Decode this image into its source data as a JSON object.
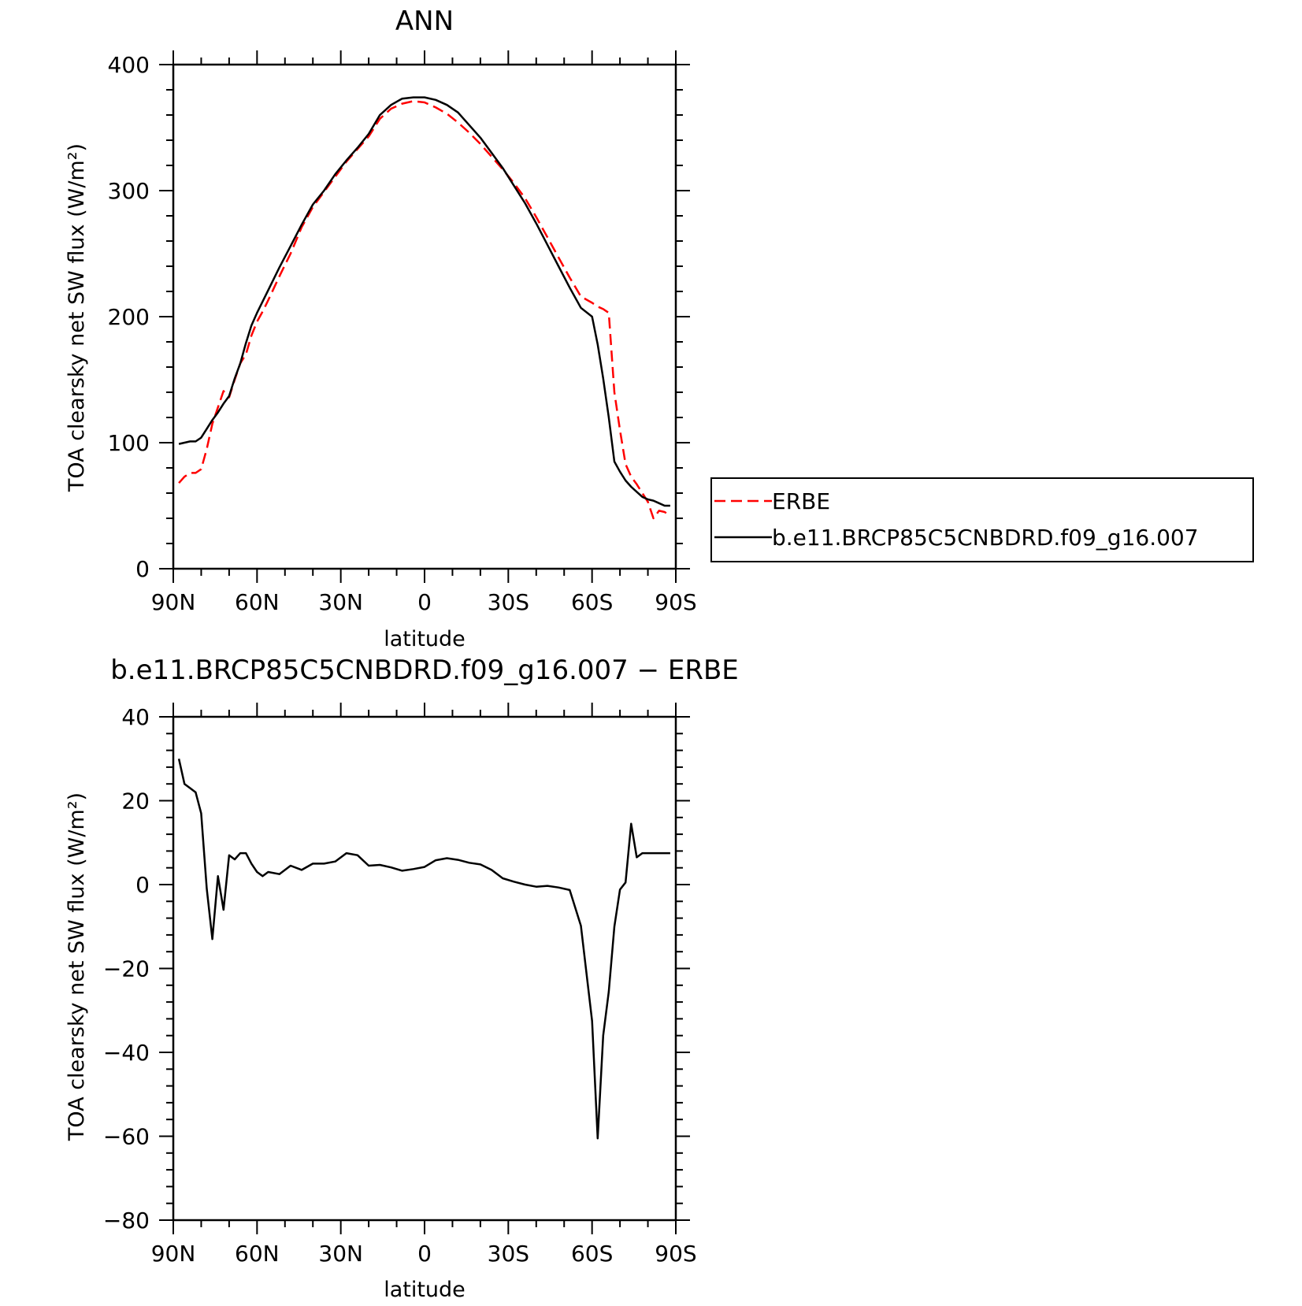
{
  "chart_data": [
    {
      "type": "line",
      "title": "ANN",
      "xlabel": "latitude",
      "ylabel": "TOA clearsky net SW flux (W/m²)",
      "xlim": [
        90,
        -90
      ],
      "ylim": [
        0,
        400
      ],
      "xtick_values": [
        90,
        60,
        30,
        0,
        -30,
        -60,
        -90
      ],
      "xtick_labels": [
        "90N",
        "60N",
        "30N",
        "0",
        "30S",
        "60S",
        "90S"
      ],
      "ytick_values": [
        0,
        100,
        200,
        300,
        400
      ],
      "ytick_labels": [
        "0",
        "100",
        "200",
        "300",
        "400"
      ],
      "legend_position": "right",
      "series": [
        {
          "name": "ERBE",
          "color": "#ff0000",
          "dash": "dashed",
          "x": [
            88,
            86,
            84,
            82,
            80,
            78,
            76,
            74,
            72,
            70,
            68,
            66,
            64,
            62,
            60,
            58,
            56,
            52,
            48,
            44,
            40,
            36,
            32,
            28,
            24,
            20,
            16,
            12,
            8,
            4,
            0,
            -4,
            -8,
            -12,
            -16,
            -20,
            -24,
            -28,
            -32,
            -36,
            -40,
            -44,
            -48,
            -52,
            -56,
            -60,
            -62,
            -64,
            -66,
            -68,
            -70,
            -72,
            -74,
            -76,
            -78,
            -80,
            -82,
            -84,
            -86,
            -88
          ],
          "y": [
            68,
            73,
            76,
            76,
            79,
            95,
            115,
            128,
            141,
            136,
            150,
            163,
            170,
            185,
            196,
            204,
            213,
            232,
            250,
            271,
            287,
            299,
            311,
            323,
            333,
            343,
            357,
            365,
            369,
            371,
            370,
            366,
            361,
            354,
            346,
            337,
            327,
            317,
            306,
            294,
            279,
            263,
            247,
            231,
            216,
            211,
            208,
            206,
            203,
            140,
            110,
            83,
            73,
            67,
            60,
            53,
            40,
            46,
            45,
            42
          ]
        },
        {
          "name": "b.e11.BRCP85C5CNBDRD.f09_g16.007",
          "color": "#000000",
          "dash": "solid",
          "x": [
            88,
            86,
            84,
            82,
            80,
            78,
            76,
            74,
            72,
            70,
            68,
            66,
            64,
            62,
            60,
            58,
            56,
            52,
            48,
            44,
            40,
            36,
            32,
            28,
            24,
            20,
            16,
            12,
            8,
            4,
            0,
            -4,
            -8,
            -12,
            -16,
            -20,
            -24,
            -28,
            -32,
            -36,
            -40,
            -44,
            -48,
            -52,
            -56,
            -60,
            -62,
            -64,
            -66,
            -68,
            -70,
            -72,
            -74,
            -76,
            -78,
            -80,
            -82,
            -84,
            -86,
            -88
          ],
          "y": [
            99,
            100,
            101,
            101,
            104,
            111,
            118,
            124,
            131,
            137,
            151,
            163,
            179,
            193,
            203,
            212,
            221,
            239,
            256,
            273,
            289,
            300,
            313,
            324,
            334,
            345,
            360,
            368,
            373,
            374,
            374,
            372,
            368,
            362,
            352,
            342,
            330,
            318,
            304,
            290,
            274,
            257,
            240,
            223,
            207,
            200,
            178,
            151,
            120,
            85,
            77,
            70,
            65,
            61,
            57,
            55,
            54,
            52,
            50,
            50
          ]
        }
      ]
    },
    {
      "type": "line",
      "title": "b.e11.BRCP85C5CNBDRD.f09_g16.007 − ERBE",
      "xlabel": "latitude",
      "ylabel": "TOA clearsky net SW flux (W/m²)",
      "xlim": [
        90,
        -90
      ],
      "ylim": [
        -80,
        40
      ],
      "xtick_values": [
        90,
        60,
        30,
        0,
        -30,
        -60,
        -90
      ],
      "xtick_labels": [
        "90N",
        "60N",
        "30N",
        "0",
        "30S",
        "60S",
        "90S"
      ],
      "ytick_values": [
        -80,
        -60,
        -40,
        -20,
        0,
        20,
        40
      ],
      "ytick_labels": [
        "−80",
        "−60",
        "−40",
        "−20",
        "0",
        "20",
        "40"
      ],
      "series": [
        {
          "name": "",
          "color": "#000000",
          "dash": "solid",
          "x": [
            88,
            86,
            84,
            82,
            80,
            78,
            76,
            74,
            72,
            70,
            68,
            66,
            64,
            62,
            60,
            58,
            56,
            52,
            48,
            44,
            40,
            36,
            32,
            28,
            24,
            20,
            16,
            12,
            8,
            4,
            0,
            -4,
            -8,
            -12,
            -16,
            -20,
            -24,
            -28,
            -32,
            -36,
            -40,
            -44,
            -48,
            -52,
            -56,
            -60,
            -62,
            -64,
            -66,
            -68,
            -70,
            -72,
            -74,
            -76,
            -78,
            -80,
            -82,
            -84,
            -86,
            -88
          ],
          "y": [
            30,
            24,
            23,
            22,
            17,
            -1,
            -13,
            2,
            -6,
            7,
            6,
            7.5,
            7.5,
            5,
            3,
            2,
            3,
            2.5,
            4.5,
            3.5,
            5,
            5,
            5.5,
            7.5,
            7,
            4.5,
            4.7,
            4.1,
            3.3,
            3.7,
            4.2,
            5.8,
            6.3,
            5.9,
            5.2,
            4.8,
            3.5,
            1.5,
            0.7,
            0,
            -0.5,
            -0.3,
            -0.7,
            -1.3,
            -9.8,
            -32.5,
            -60.5,
            -36,
            -25.5,
            -10,
            -1.2,
            0.5,
            14.5,
            6.5,
            7.5,
            7.5,
            7.5,
            7.5,
            7.5,
            7.5
          ]
        }
      ]
    }
  ]
}
